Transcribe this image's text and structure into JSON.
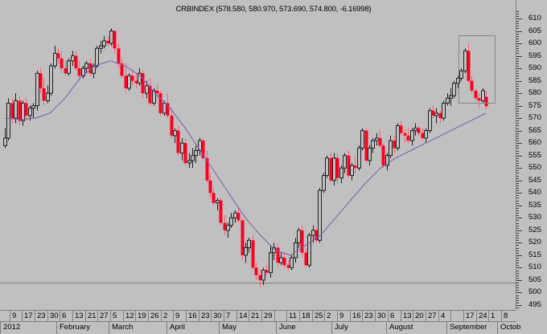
{
  "title": "CRBINDEX (578.580, 580.970, 573.690, 574.800, -6.16998)",
  "colors": {
    "background": "#c0c0c0",
    "up_candle": "#000000",
    "down_candle": "#ff0022",
    "ma_line": "#7b5ea7",
    "support_line": "#909090",
    "highlight_box": "#888888"
  },
  "price_axis": {
    "labels": [
      "610",
      "605",
      "600",
      "595",
      "590",
      "585",
      "580",
      "575",
      "570",
      "565",
      "560",
      "555",
      "550",
      "545",
      "540",
      "535",
      "530",
      "525",
      "520",
      "515",
      "510",
      "505",
      "500",
      "495"
    ]
  },
  "time_axis": {
    "days": [
      "",
      "9",
      "17",
      "23",
      "30",
      "6",
      "13",
      "21",
      "27",
      "5",
      "12",
      "19",
      "26",
      "2",
      "9",
      "16",
      "23",
      "30",
      "7",
      "14",
      "21",
      "29",
      "",
      "11",
      "18",
      "25",
      "2",
      "9",
      "16",
      "23",
      "30",
      "6",
      "13",
      "20",
      "27",
      "4",
      "",
      "17",
      "24",
      "1",
      "8"
    ],
    "months": [
      "2012",
      "February",
      "March",
      "April",
      "May",
      "June",
      "July",
      "August",
      "September",
      "Octob"
    ]
  },
  "chart_data": {
    "type": "candlestick",
    "title": "CRBINDEX (578.580, 580.970, 573.690, 574.800, -6.16998)",
    "instrument": "CRBINDEX",
    "last_bar": {
      "open": 578.58,
      "high": 580.97,
      "low": 573.69,
      "close": 574.8,
      "change": -6.16998
    },
    "xlabel": "",
    "ylabel": "",
    "ylim": [
      493,
      613
    ],
    "y_ticks": [
      610,
      605,
      600,
      595,
      590,
      585,
      580,
      575,
      570,
      565,
      560,
      555,
      550,
      545,
      540,
      535,
      530,
      525,
      520,
      515,
      510,
      505,
      500,
      495
    ],
    "x_months": [
      "2012 (January)",
      "February",
      "March",
      "April",
      "May",
      "June",
      "July",
      "August",
      "September",
      "October"
    ],
    "support_level": 504,
    "highlight_box": {
      "x_from": "2012-09-06",
      "x_to": "2012-09-24",
      "y_from": 574,
      "y_to": 602
    },
    "moving_average_approx": [
      [
        0,
        570
      ],
      [
        10,
        569.5
      ],
      [
        20,
        570
      ],
      [
        30,
        572
      ],
      [
        40,
        578
      ],
      [
        50,
        586
      ],
      [
        60,
        591
      ],
      [
        70,
        593
      ],
      [
        80,
        591
      ],
      [
        90,
        587
      ],
      [
        100,
        580
      ],
      [
        110,
        574
      ],
      [
        120,
        566
      ],
      [
        130,
        557
      ],
      [
        140,
        548
      ],
      [
        150,
        539
      ],
      [
        160,
        530
      ],
      [
        170,
        523
      ],
      [
        180,
        517
      ],
      [
        190,
        515
      ],
      [
        200,
        519
      ],
      [
        210,
        523
      ],
      [
        220,
        530
      ],
      [
        230,
        537
      ],
      [
        240,
        544
      ],
      [
        250,
        550
      ],
      [
        260,
        554
      ],
      [
        270,
        557
      ],
      [
        280,
        560
      ],
      [
        290,
        563
      ],
      [
        300,
        566
      ],
      [
        310,
        569
      ],
      [
        320,
        572
      ]
    ],
    "candles": [
      [
        559,
        566,
        558,
        562
      ],
      [
        562,
        578,
        561,
        576
      ],
      [
        576,
        578,
        568,
        570
      ],
      [
        570,
        580,
        568,
        577
      ],
      [
        577,
        579,
        567,
        569
      ],
      [
        569,
        577,
        567,
        576
      ],
      [
        576,
        578,
        569,
        571
      ],
      [
        571,
        575,
        569,
        574
      ],
      [
        574,
        576,
        570,
        575
      ],
      [
        575,
        589,
        573,
        588
      ],
      [
        588,
        590,
        580,
        582
      ],
      [
        582,
        586,
        575,
        577
      ],
      [
        577,
        583,
        576,
        580
      ],
      [
        580,
        592,
        579,
        591
      ],
      [
        591,
        599,
        590,
        596
      ],
      [
        596,
        598,
        592,
        594
      ],
      [
        594,
        597,
        588,
        590
      ],
      [
        590,
        593,
        587,
        588
      ],
      [
        588,
        594,
        587,
        593
      ],
      [
        593,
        597,
        591,
        595
      ],
      [
        595,
        597,
        589,
        590
      ],
      [
        590,
        593,
        585,
        587
      ],
      [
        587,
        591,
        586,
        590
      ],
      [
        590,
        593,
        588,
        592
      ],
      [
        592,
        594,
        587,
        588
      ],
      [
        588,
        592,
        586,
        591
      ],
      [
        591,
        599,
        590,
        598
      ],
      [
        598,
        601,
        596,
        599
      ],
      [
        599,
        603,
        598,
        601
      ],
      [
        601,
        603,
        599,
        600
      ],
      [
        600,
        606,
        599,
        605
      ],
      [
        605,
        605,
        596,
        598
      ],
      [
        598,
        600,
        590,
        592
      ],
      [
        592,
        594,
        586,
        587
      ],
      [
        587,
        592,
        580,
        582
      ],
      [
        582,
        588,
        581,
        587
      ],
      [
        587,
        589,
        583,
        585
      ],
      [
        585,
        588,
        582,
        584
      ],
      [
        584,
        590,
        583,
        588
      ],
      [
        588,
        589,
        578,
        580
      ],
      [
        580,
        585,
        578,
        583
      ],
      [
        583,
        586,
        575,
        576
      ],
      [
        576,
        582,
        575,
        581
      ],
      [
        581,
        584,
        578,
        580
      ],
      [
        580,
        581,
        571,
        572
      ],
      [
        572,
        577,
        571,
        576
      ],
      [
        576,
        580,
        570,
        571
      ],
      [
        571,
        574,
        562,
        563
      ],
      [
        563,
        566,
        560,
        565
      ],
      [
        565,
        567,
        555,
        556
      ],
      [
        556,
        562,
        553,
        560
      ],
      [
        560,
        562,
        551,
        552
      ],
      [
        552,
        556,
        550,
        553
      ],
      [
        553,
        558,
        550,
        555
      ],
      [
        555,
        559,
        552,
        557
      ],
      [
        557,
        562,
        555,
        561
      ],
      [
        561,
        562,
        553,
        554
      ],
      [
        554,
        557,
        544,
        545
      ],
      [
        545,
        548,
        538,
        540
      ],
      [
        540,
        542,
        535,
        536
      ],
      [
        536,
        538,
        533,
        537
      ],
      [
        537,
        538,
        527,
        528
      ],
      [
        528,
        531,
        523,
        525
      ],
      [
        525,
        528,
        522,
        527
      ],
      [
        527,
        532,
        526,
        530
      ],
      [
        530,
        533,
        528,
        532
      ],
      [
        532,
        534,
        528,
        529
      ],
      [
        529,
        530,
        513,
        515
      ],
      [
        515,
        520,
        512,
        518
      ],
      [
        518,
        522,
        516,
        521
      ],
      [
        521,
        523,
        509,
        510
      ],
      [
        510,
        512,
        505,
        507
      ],
      [
        507,
        509,
        502,
        505
      ],
      [
        505,
        510,
        503,
        509
      ],
      [
        509,
        511,
        507,
        508
      ],
      [
        508,
        519,
        506,
        516
      ],
      [
        516,
        520,
        513,
        518
      ],
      [
        518,
        520,
        510,
        512
      ],
      [
        512,
        516,
        511,
        514
      ],
      [
        514,
        516,
        510,
        511
      ],
      [
        511,
        513,
        509,
        510
      ],
      [
        510,
        515,
        509,
        514
      ],
      [
        514,
        522,
        512,
        520
      ],
      [
        520,
        526,
        518,
        525
      ],
      [
        525,
        527,
        514,
        516
      ],
      [
        516,
        518,
        510,
        511
      ],
      [
        511,
        524,
        510,
        523
      ],
      [
        523,
        527,
        520,
        525
      ],
      [
        525,
        526,
        520,
        521
      ],
      [
        521,
        542,
        520,
        541
      ],
      [
        541,
        548,
        540,
        547
      ],
      [
        547,
        555,
        546,
        554
      ],
      [
        554,
        556,
        544,
        545
      ],
      [
        545,
        556,
        543,
        554
      ],
      [
        554,
        556,
        544,
        546
      ],
      [
        546,
        551,
        544,
        550
      ],
      [
        550,
        556,
        548,
        555
      ],
      [
        555,
        557,
        546,
        547
      ],
      [
        547,
        552,
        545,
        551
      ],
      [
        551,
        555,
        548,
        550
      ],
      [
        550,
        559,
        549,
        558
      ],
      [
        558,
        566,
        557,
        565
      ],
      [
        565,
        566,
        552,
        553
      ],
      [
        553,
        559,
        551,
        558
      ],
      [
        558,
        562,
        556,
        561
      ],
      [
        561,
        564,
        559,
        562
      ],
      [
        562,
        565,
        558,
        559
      ],
      [
        559,
        560,
        550,
        551
      ],
      [
        551,
        556,
        549,
        555
      ],
      [
        555,
        563,
        554,
        561
      ],
      [
        561,
        563,
        556,
        558
      ],
      [
        558,
        568,
        557,
        567
      ],
      [
        567,
        569,
        563,
        564
      ],
      [
        564,
        566,
        560,
        563
      ],
      [
        563,
        566,
        560,
        561
      ],
      [
        561,
        566,
        559,
        565
      ],
      [
        565,
        568,
        563,
        566
      ],
      [
        566,
        567,
        563,
        564
      ],
      [
        564,
        566,
        561,
        562
      ],
      [
        562,
        566,
        560,
        565
      ],
      [
        565,
        574,
        564,
        573
      ],
      [
        573,
        575,
        570,
        571
      ],
      [
        571,
        574,
        568,
        572
      ],
      [
        572,
        573,
        568,
        570
      ],
      [
        570,
        577,
        569,
        576
      ],
      [
        576,
        580,
        575,
        578
      ],
      [
        578,
        582,
        575,
        579
      ],
      [
        579,
        585,
        578,
        584
      ],
      [
        584,
        587,
        582,
        586
      ],
      [
        586,
        590,
        585,
        589
      ],
      [
        589,
        598,
        588,
        597
      ],
      [
        597,
        600,
        584,
        585
      ],
      [
        585,
        587,
        580,
        581
      ],
      [
        581,
        582,
        577,
        578
      ],
      [
        578,
        580,
        574,
        577
      ],
      [
        577,
        582,
        576,
        581
      ],
      [
        578.58,
        580.97,
        573.69,
        574.8
      ]
    ]
  }
}
